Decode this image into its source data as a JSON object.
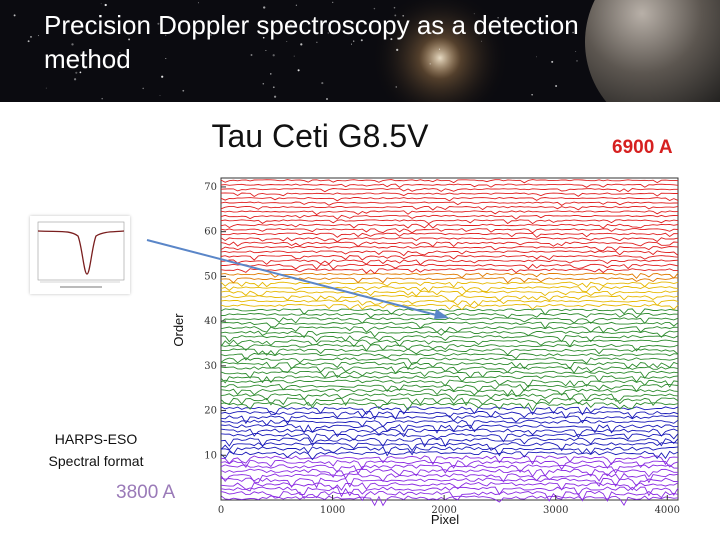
{
  "slide": {
    "title": "Precision Doppler spectroscopy as a detection method"
  },
  "annotations": {
    "wavelength_red": "6900 A",
    "wavelength_violet": "3800 A",
    "format_note": "HARPS-ESO Spectral format"
  },
  "colors": {
    "banner_bg": "#0b0b10",
    "title_text": "#ffffff",
    "wavelength_red": "#d62020",
    "wavelength_violet": "#9a7ab8",
    "arrow": "#5a86c8"
  },
  "chart_data": {
    "type": "line",
    "title": "Tau Ceti G8.5V",
    "xlabel": "Pixel",
    "ylabel": "Order",
    "xlim": [
      0,
      4096
    ],
    "ylim": [
      0,
      72
    ],
    "x_ticks": [
      0,
      1000,
      2000,
      3000,
      4000
    ],
    "y_ticks": [
      10,
      20,
      30,
      40,
      50,
      60,
      70
    ],
    "orders": 72,
    "color_bands": [
      {
        "color": "#8a2be2",
        "from_order": 0,
        "to_order": 9
      },
      {
        "color": "#1a1ab8",
        "from_order": 10,
        "to_order": 20
      },
      {
        "color": "#2e8b2e",
        "from_order": 21,
        "to_order": 42
      },
      {
        "color": "#e6b800",
        "from_order": 43,
        "to_order": 48
      },
      {
        "color": "#e07a00",
        "from_order": 49,
        "to_order": 50
      },
      {
        "color": "#e02020",
        "from_order": 51,
        "to_order": 72
      }
    ]
  }
}
